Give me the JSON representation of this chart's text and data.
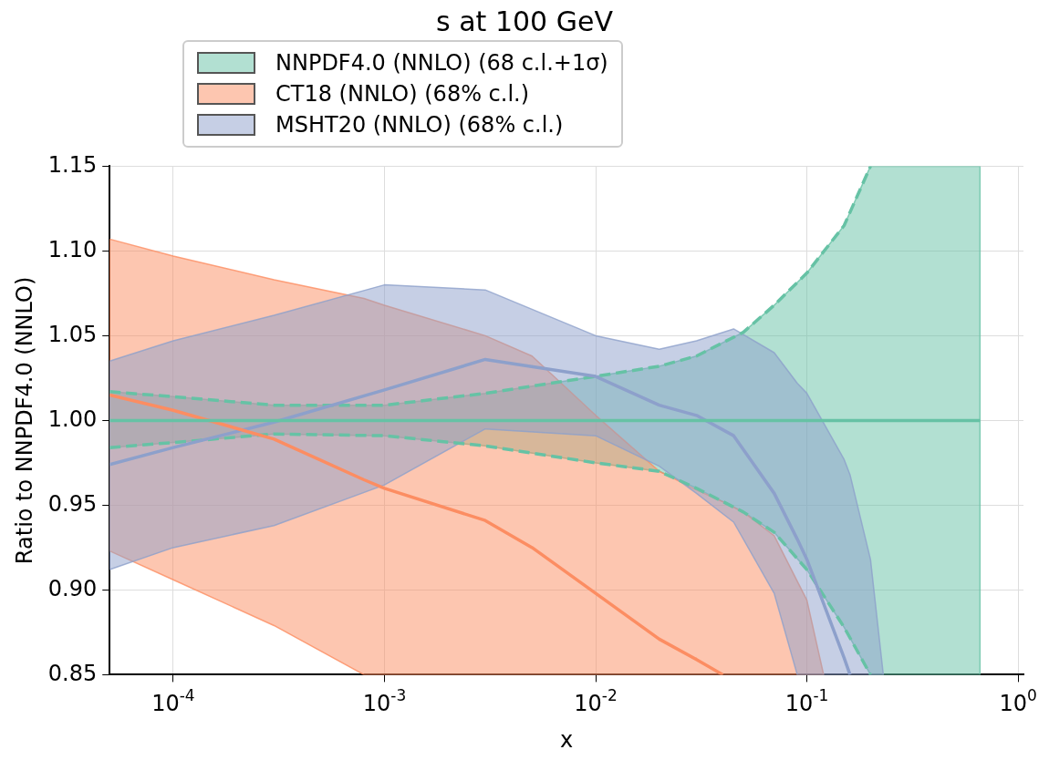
{
  "chart_data": {
    "type": "line",
    "title": "s at 100 GeV",
    "xlabel": "x",
    "ylabel": "Ratio to NNPDF4.0 (NNLO)",
    "log": "x",
    "grid": true,
    "legend": "top left",
    "xlim": [
      5e-05,
      1.06
    ],
    "xticks": [
      {
        "value": 0.0001,
        "label": "10$^{-4}$"
      },
      {
        "value": 0.001,
        "label": "10$^{-3}$"
      },
      {
        "value": 0.01,
        "label": "10$^{-2}$"
      },
      {
        "value": 0.1,
        "label": "10$^{-1}$"
      },
      {
        "value": 1,
        "label": "10$^{0}$"
      }
    ],
    "ylim": [
      0.85,
      1.15
    ],
    "yticks": [
      {
        "value": 0.85,
        "label": "0.85"
      },
      {
        "value": 0.9,
        "label": "0.90"
      },
      {
        "value": 0.95,
        "label": "0.95"
      },
      {
        "value": 1,
        "label": "1.00"
      },
      {
        "value": 1.05,
        "label": "1.05"
      },
      {
        "value": 1.1,
        "label": "1.10"
      },
      {
        "value": 1.15,
        "label": "1.15"
      }
    ],
    "series": [
      {
        "name": "NNPDF4.0 (NNLO) (68 c.l.+1σ)",
        "color": "#66c2a5",
        "x": [
          5e-05,
          0.0001,
          0.0003,
          0.001,
          0.003,
          0.01,
          0.02,
          0.03,
          0.05,
          0.07,
          0.1,
          0.15,
          0.2,
          0.3,
          0.5,
          0.66
        ],
        "values": [
          1,
          1,
          1,
          1,
          1,
          1,
          1,
          1,
          1,
          1,
          1,
          1,
          1,
          1,
          1,
          1
        ],
        "lower": [
          0.984,
          0.987,
          0.992,
          0.991,
          0.985,
          0.975,
          0.97,
          0.96,
          0.946,
          0.934,
          0.912,
          0.878,
          0.85,
          0.85,
          0.85,
          0.85
        ],
        "upper": [
          1.017,
          1.014,
          1.009,
          1.009,
          1.016,
          1.026,
          1.032,
          1.038,
          1.052,
          1.068,
          1.087,
          1.115,
          1.15,
          1.15,
          1.15,
          1.15
        ]
      },
      {
        "name": "CT18 (NNLO) (68% c.l.)",
        "color": "#fc8d62",
        "x": [
          5e-05,
          0.0001,
          0.0003,
          0.0008,
          0.001,
          0.003,
          0.005,
          0.01,
          0.02,
          0.03,
          0.04,
          0.05,
          0.07,
          0.1,
          0.12
        ],
        "values": [
          1.015,
          1.006,
          0.989,
          0.965,
          0.96,
          0.941,
          0.925,
          0.898,
          0.871,
          0.859,
          0.85,
          null,
          null,
          null,
          null
        ],
        "lower": [
          0.923,
          0.906,
          0.879,
          0.85,
          0.85,
          0.85,
          0.85,
          0.85,
          0.85,
          0.85,
          0.85,
          0.85,
          0.85,
          0.85,
          0.85
        ],
        "upper": [
          1.107,
          1.097,
          1.083,
          1.072,
          1.068,
          1.05,
          1.038,
          1.003,
          0.97,
          0.959,
          0.952,
          0.946,
          0.932,
          0.894,
          0.85
        ]
      },
      {
        "name": "MSHT20 (NNLO) (68% c.l.)",
        "color": "#8da0cb",
        "x": [
          5e-05,
          0.0001,
          0.0003,
          0.001,
          0.003,
          0.01,
          0.02,
          0.03,
          0.045,
          0.07,
          0.09,
          0.1,
          0.15,
          0.16,
          0.2,
          0.23
        ],
        "values": [
          0.974,
          0.984,
          0.999,
          1.018,
          1.036,
          1.026,
          1.009,
          1.003,
          0.991,
          0.957,
          0.93,
          0.918,
          0.86,
          0.85,
          null,
          null
        ],
        "lower": [
          0.912,
          0.925,
          0.938,
          0.962,
          0.995,
          0.991,
          0.973,
          0.957,
          0.94,
          0.898,
          0.85,
          0.85,
          0.85,
          0.85,
          0.85,
          0.85
        ],
        "upper": [
          1.035,
          1.047,
          1.062,
          1.08,
          1.077,
          1.05,
          1.042,
          1.047,
          1.054,
          1.04,
          1.022,
          1.016,
          0.977,
          0.968,
          0.918,
          0.85
        ]
      },
      {
        "type": "line",
        "line_style": "dashed",
        "color": "#66c2a5",
        "x": [
          5e-05,
          0.0001,
          0.0003,
          0.001,
          0.003,
          0.01,
          0.02,
          0.03,
          0.05,
          0.07,
          0.1,
          0.15,
          0.2
        ],
        "values": [
          1.017,
          1.014,
          1.009,
          1.009,
          1.016,
          1.026,
          1.032,
          1.038,
          1.052,
          1.068,
          1.087,
          1.115,
          1.15
        ]
      },
      {
        "type": "line",
        "line_style": "dashed",
        "color": "#66c2a5",
        "x": [
          5e-05,
          0.0001,
          0.0003,
          0.001,
          0.003,
          0.01,
          0.02,
          0.03,
          0.05,
          0.07,
          0.1,
          0.15,
          0.2
        ],
        "values": [
          0.984,
          0.987,
          0.992,
          0.991,
          0.985,
          0.975,
          0.97,
          0.96,
          0.946,
          0.934,
          0.912,
          0.878,
          0.85
        ]
      }
    ]
  }
}
